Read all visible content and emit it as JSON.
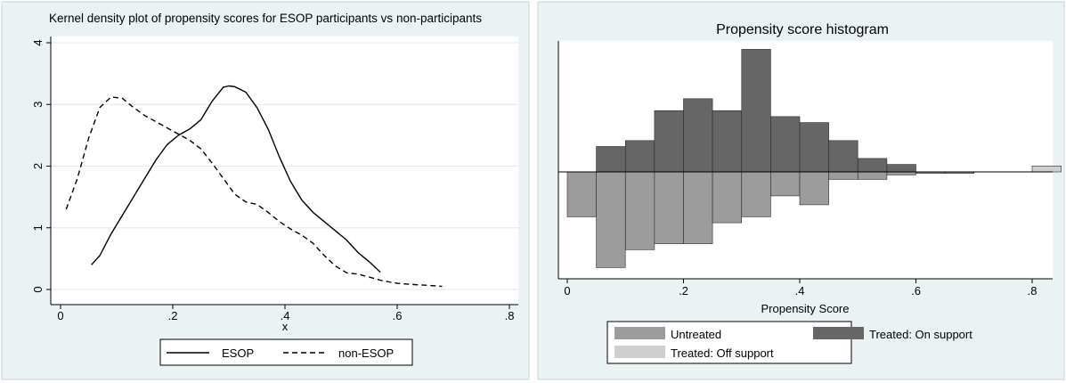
{
  "chart_data": [
    {
      "type": "line",
      "title": "Kernel density plot of propensity scores for ESOP participants vs non-participants",
      "xlabel": "x",
      "ylabel": "",
      "xlim": [
        0,
        0.8
      ],
      "ylim": [
        0,
        4
      ],
      "x_ticks": [
        0,
        0.2,
        0.4,
        0.6,
        0.8
      ],
      "x_tick_labels": [
        "0",
        ".2",
        ".4",
        ".6",
        ".8"
      ],
      "y_ticks": [
        0,
        1,
        2,
        3,
        4
      ],
      "y_tick_labels": [
        "0",
        "1",
        "2",
        "3",
        "4"
      ],
      "grid": true,
      "legend_position": "bottom",
      "series": [
        {
          "name": "ESOP",
          "line_style": "solid",
          "x": [
            0.055,
            0.07,
            0.09,
            0.11,
            0.13,
            0.15,
            0.17,
            0.19,
            0.21,
            0.23,
            0.25,
            0.27,
            0.29,
            0.3,
            0.31,
            0.33,
            0.35,
            0.37,
            0.39,
            0.41,
            0.43,
            0.45,
            0.47,
            0.49,
            0.51,
            0.53,
            0.55,
            0.57
          ],
          "y": [
            0.4,
            0.55,
            0.9,
            1.2,
            1.5,
            1.8,
            2.1,
            2.35,
            2.5,
            2.6,
            2.75,
            3.05,
            3.28,
            3.3,
            3.29,
            3.2,
            2.95,
            2.6,
            2.15,
            1.75,
            1.45,
            1.25,
            1.1,
            0.95,
            0.8,
            0.6,
            0.45,
            0.28
          ]
        },
        {
          "name": "non-ESOP",
          "line_style": "dashed",
          "x": [
            0.01,
            0.03,
            0.05,
            0.07,
            0.09,
            0.11,
            0.13,
            0.15,
            0.17,
            0.19,
            0.21,
            0.23,
            0.25,
            0.27,
            0.29,
            0.31,
            0.33,
            0.35,
            0.37,
            0.39,
            0.41,
            0.43,
            0.45,
            0.47,
            0.49,
            0.51,
            0.53,
            0.55,
            0.57,
            0.6,
            0.63,
            0.65,
            0.68
          ],
          "y": [
            1.3,
            1.8,
            2.45,
            2.95,
            3.12,
            3.1,
            2.95,
            2.82,
            2.72,
            2.62,
            2.52,
            2.42,
            2.28,
            2.05,
            1.8,
            1.55,
            1.42,
            1.38,
            1.25,
            1.1,
            0.98,
            0.88,
            0.75,
            0.55,
            0.38,
            0.27,
            0.25,
            0.2,
            0.15,
            0.1,
            0.08,
            0.07,
            0.05
          ]
        }
      ]
    },
    {
      "type": "bar",
      "title": "Propensity score histogram",
      "xlabel": "Propensity Score",
      "ylabel": "",
      "xlim": [
        -0.01,
        0.86
      ],
      "x_ticks": [
        0,
        0.2,
        0.4,
        0.6,
        0.8
      ],
      "x_tick_labels": [
        "0",
        ".2",
        ".4",
        ".6",
        ".8"
      ],
      "bin_width": 0.05,
      "y_axis_labeled": false,
      "ylim": [
        -0.33,
        0.42
      ],
      "grid": false,
      "legend_position": "bottom",
      "series": [
        {
          "name": "Untreated",
          "color": "#9c9c9c",
          "direction": "below",
          "bin_centers": [
            0.025,
            0.075,
            0.125,
            0.175,
            0.225,
            0.275,
            0.325,
            0.375,
            0.425,
            0.475,
            0.525,
            0.575,
            0.625,
            0.675
          ],
          "values": [
            0.15,
            0.32,
            0.26,
            0.24,
            0.24,
            0.17,
            0.15,
            0.08,
            0.11,
            0.025,
            0.025,
            0.01,
            0.005,
            0.005
          ]
        },
        {
          "name": "Treated: On support",
          "color": "#666666",
          "direction": "above",
          "bin_centers": [
            0.075,
            0.125,
            0.175,
            0.225,
            0.275,
            0.325,
            0.375,
            0.425,
            0.475,
            0.525,
            0.575
          ],
          "values": [
            0.085,
            0.105,
            0.205,
            0.245,
            0.205,
            0.41,
            0.185,
            0.165,
            0.105,
            0.045,
            0.025
          ]
        },
        {
          "name": "Treated: Off support",
          "color": "#cfcfcf",
          "direction": "above",
          "bin_centers": [
            0.825
          ],
          "values": [
            0.02
          ]
        }
      ]
    }
  ]
}
